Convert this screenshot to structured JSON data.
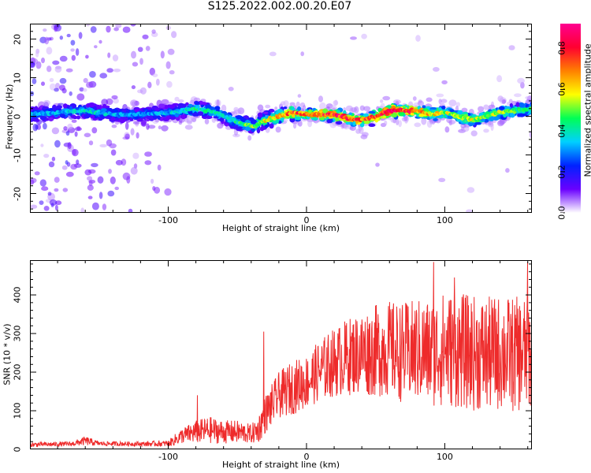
{
  "figure": {
    "title": "S125.2022.002.00.20.E07"
  },
  "chart_data": [
    {
      "type": "heatmap",
      "title": "",
      "xlabel": "Height of straight line (km)",
      "ylabel": "Frequency (Hz)",
      "xlim": [
        -200,
        163
      ],
      "ylim": [
        -25,
        24
      ],
      "xticks": [
        "-100",
        "0",
        "100"
      ],
      "yticks": [
        "20",
        "10",
        "0",
        "-10",
        "-20"
      ],
      "colorbar": {
        "label": "Normalized spectral amplitude",
        "range": [
          0,
          0.92
        ],
        "ticks": [
          "0.0",
          "0.2",
          "0.4",
          "0.6",
          "0.8"
        ],
        "colormap": [
          "#ffffff",
          "#6a00ff",
          "#0022ff",
          "#00d0ff",
          "#00ff55",
          "#ffff00",
          "#ff8000",
          "#ff0030",
          "#ff0090"
        ]
      },
      "ridge": {
        "x": [
          -200,
          -180,
          -160,
          -140,
          -120,
          -100,
          -80,
          -65,
          -55,
          -45,
          -38,
          -30,
          -20,
          -10,
          0,
          10,
          20,
          30,
          40,
          50,
          60,
          70,
          80,
          90,
          100,
          110,
          120,
          130,
          140,
          150,
          163
        ],
        "frequency": [
          0.5,
          1,
          1.5,
          0.5,
          0.5,
          1,
          2,
          1,
          -1,
          -2,
          -2.5,
          -1,
          0,
          1,
          0.5,
          0.5,
          0.5,
          -0.5,
          -1,
          0,
          1.5,
          1.5,
          1.5,
          0.5,
          1,
          0,
          -1,
          0,
          1,
          1.5,
          2
        ],
        "amplitude": [
          0.35,
          0.35,
          0.4,
          0.35,
          0.3,
          0.35,
          0.45,
          0.4,
          0.4,
          0.5,
          0.55,
          0.6,
          0.7,
          0.8,
          0.75,
          0.8,
          0.85,
          0.85,
          0.8,
          0.85,
          0.9,
          0.85,
          0.8,
          0.65,
          0.6,
          0.55,
          0.6,
          0.55,
          0.55,
          0.5,
          0.45
        ]
      }
    },
    {
      "type": "line",
      "title": "",
      "xlabel": "Height of straight line (km)",
      "ylabel": "SNR (10 * v/v)",
      "xlim": [
        -200,
        163
      ],
      "ylim": [
        0,
        490
      ],
      "xticks": [
        "-100",
        "0",
        "100"
      ],
      "yticks": [
        "0",
        "100",
        "200",
        "300",
        "400"
      ],
      "color": "#ee2b2b",
      "envelope": {
        "x": [
          -200,
          -170,
          -160,
          -150,
          -120,
          -100,
          -95,
          -90,
          -80,
          -70,
          -60,
          -50,
          -40,
          -35,
          -30,
          -20,
          -10,
          0,
          10,
          20,
          30,
          40,
          50,
          60,
          70,
          80,
          90,
          100,
          110,
          120,
          130,
          140,
          150,
          160,
          163
        ],
        "mean": [
          12,
          14,
          22,
          15,
          14,
          15,
          25,
          35,
          45,
          50,
          45,
          45,
          40,
          50,
          90,
          140,
          160,
          175,
          205,
          225,
          240,
          250,
          255,
          260,
          250,
          255,
          250,
          260,
          255,
          250,
          245,
          250,
          245,
          250,
          240
        ],
        "spread": [
          6,
          6,
          12,
          6,
          6,
          8,
          15,
          20,
          30,
          35,
          30,
          30,
          25,
          35,
          50,
          60,
          70,
          70,
          80,
          90,
          100,
          110,
          120,
          125,
          130,
          135,
          140,
          150,
          150,
          150,
          150,
          150,
          150,
          150,
          150
        ]
      },
      "peaks": [
        {
          "x": -79,
          "y": 140
        },
        {
          "x": -31,
          "y": 305
        },
        {
          "x": 92,
          "y": 485
        },
        {
          "x": 160,
          "y": 485
        },
        {
          "x": 107,
          "y": 445
        }
      ]
    }
  ]
}
